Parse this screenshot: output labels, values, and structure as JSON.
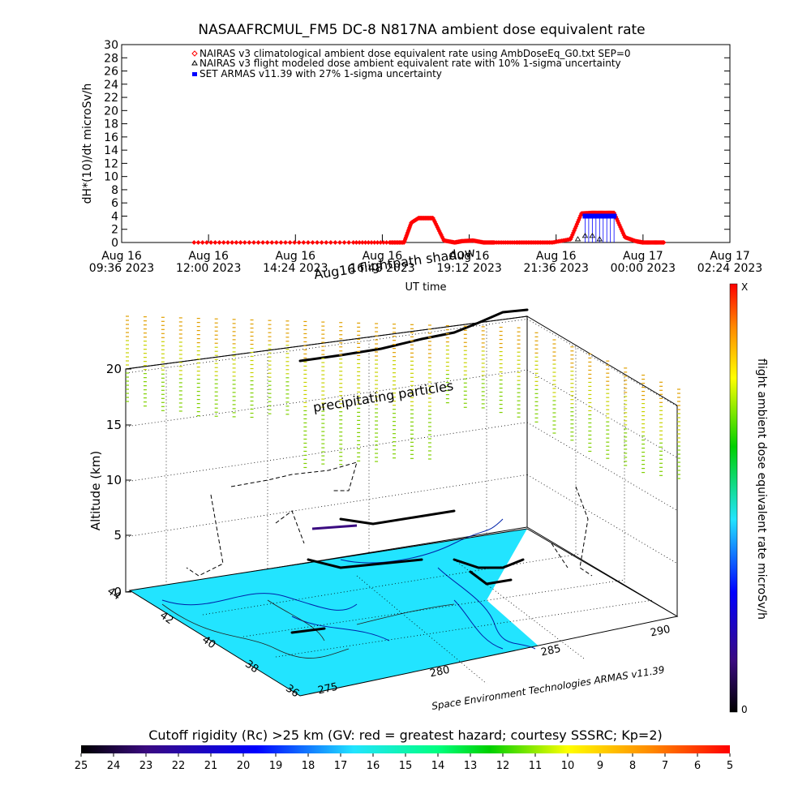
{
  "chart_data": [
    {
      "type": "scatter",
      "title": "NASAAFRCMUL_FM5 DC-8   N817NA ambient dose equivalent rate",
      "xlabel": "UT time",
      "ylabel": "dH*(10)/dt microSv/h",
      "ylim": [
        0,
        30
      ],
      "y_ticks": [
        0,
        2,
        4,
        6,
        8,
        10,
        12,
        14,
        16,
        18,
        20,
        22,
        24,
        26,
        28,
        30
      ],
      "x_ticks": [
        {
          "date": "Aug 16",
          "time": "09:36 2023"
        },
        {
          "date": "Aug 16",
          "time": "12:00 2023"
        },
        {
          "date": "Aug 16",
          "time": "14:24 2023"
        },
        {
          "date": "Aug 16",
          "time": "16:48 2023"
        },
        {
          "date": "Aug 16",
          "time": "19:12 2023"
        },
        {
          "date": "Aug 16",
          "time": "21:36 2023"
        },
        {
          "date": "Aug 17",
          "time": "00:00 2023"
        },
        {
          "date": "Aug 17",
          "time": "02:24 2023"
        }
      ],
      "xlim_hours": [
        9.6,
        26.4
      ],
      "legend": [
        {
          "label": "NAIRAS v3 climatological ambient dose equivalent rate using AmbDoseEq_G0.txt SEP=0",
          "color": "#ff0000",
          "marker": "diamond"
        },
        {
          "label": "NAIRAS v3 flight modeled dose ambient equivalent rate with 10% 1-sigma uncertainty",
          "color": "#000000",
          "marker": "triangle"
        },
        {
          "label": "SET ARMAS v11.39 with 27% 1-sigma uncertainty",
          "color": "#0000ff",
          "marker": "square"
        }
      ],
      "legend_position": "top",
      "series": [
        {
          "name": "NAIRAS v3 climatological ambient dose equivalent rate using AmbDoseEq_G0.txt SEP=0",
          "x_hours": [
            11.6,
            13.0,
            14.5,
            16.0,
            17.0,
            17.4,
            17.6,
            17.8,
            18.0,
            18.2,
            18.5,
            18.8,
            19.0,
            19.3,
            19.6,
            19.9,
            20.5,
            21.0,
            21.5,
            22.0,
            22.3,
            22.6,
            22.9,
            23.2,
            23.5,
            23.8,
            24.0,
            24.3,
            24.6
          ],
          "values": [
            0,
            0,
            0,
            0,
            0,
            0,
            3,
            3.7,
            3.7,
            3.7,
            0.3,
            0,
            0.2,
            0.3,
            0,
            0,
            0,
            0,
            0,
            0.5,
            4.4,
            4.5,
            4.5,
            4.5,
            0.8,
            0.2,
            0,
            0,
            0
          ]
        },
        {
          "name": "NAIRAS v3 flight modeled dose ambient equivalent rate with 10% 1-sigma uncertainty",
          "x_hours": [
            22.2,
            22.4,
            22.6,
            22.8
          ],
          "values": [
            0.5,
            1.0,
            1.0,
            0.5
          ]
        },
        {
          "name": "SET ARMAS v11.39 with 27% 1-sigma uncertainty",
          "x_hours": [
            22.4,
            22.5,
            22.6,
            22.7,
            22.8,
            22.9,
            23.0,
            23.1,
            23.2
          ],
          "values": [
            4.0,
            4.0,
            4.0,
            4.0,
            4.0,
            4.0,
            4.0,
            4.0,
            4.0
          ]
        }
      ]
    },
    {
      "type": "scatter",
      "ylabel": "Altitude (km)",
      "z_ticks": [
        "0",
        "5",
        "10",
        "15",
        "20"
      ],
      "lat_ticks": [
        "36",
        "38",
        "40",
        "42",
        "44"
      ],
      "lon_ticks": [
        "275",
        "280",
        "285",
        "290"
      ],
      "annotations": [
        "Aug16 flightpath shadow",
        "precipitating particles",
        "Space Environment Technologies ARMAS v11.39"
      ],
      "colorbar": {
        "label": "flight ambient dose equivalent rate microSv/h",
        "top_label": "X",
        "bottom_label": "0"
      }
    },
    {
      "type": "heatmap",
      "title": "Cutoff rigidity (Rc) >25 km (GV: red = greatest hazard; courtesy SSSRC; Kp=2)",
      "tick_labels": [
        "25",
        "24",
        "23",
        "22",
        "21",
        "20",
        "19",
        "18",
        "17",
        "16",
        "15",
        "14",
        "13",
        "12",
        "11",
        "10",
        "9",
        "8",
        "7",
        "6",
        "5"
      ]
    }
  ]
}
